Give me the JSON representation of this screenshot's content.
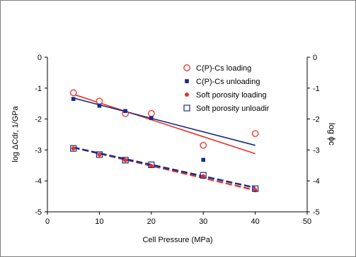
{
  "chart_data": {
    "type": "scatter",
    "xlabel": "Cell Pressure (MPa)",
    "ylabel_left": "log ΔCdr, 1/GPa",
    "ylabel_right": "log ϕc",
    "xlim": [
      0,
      50
    ],
    "ylim": [
      -5,
      0
    ],
    "x_ticks": [
      0,
      10,
      20,
      30,
      40,
      50
    ],
    "y_ticks": [
      0,
      -1,
      -2,
      -3,
      -4,
      -5
    ],
    "legend_position": "top-right",
    "grid": false,
    "series": [
      {
        "name": "C(P)-Cs loading",
        "marker": "open-circle",
        "color": "#e8312a",
        "x": [
          5,
          10,
          15,
          20,
          30,
          40
        ],
        "y": [
          -1.15,
          -1.42,
          -1.82,
          -1.82,
          -2.85,
          -2.47
        ],
        "trend": {
          "x": [
            5,
            40
          ],
          "y": [
            -1.2,
            -3.12
          ],
          "style": "solid"
        }
      },
      {
        "name": "C(P)-Cs unloading",
        "marker": "filled-square",
        "color": "#1b2a80",
        "x": [
          5,
          10,
          15,
          20,
          30
        ],
        "y": [
          -1.35,
          -1.57,
          -1.74,
          -1.97,
          -3.32
        ],
        "trend": {
          "x": [
            5,
            40
          ],
          "y": [
            -1.32,
            -2.85
          ],
          "style": "solid"
        }
      },
      {
        "name": "Soft porosity loading",
        "marker": "filled-circle",
        "color": "#e8312a",
        "x": [
          5,
          10,
          15,
          20,
          30,
          40
        ],
        "y": [
          -2.95,
          -3.15,
          -3.33,
          -3.52,
          -3.85,
          -4.3
        ],
        "trend": {
          "x": [
            5,
            40
          ],
          "y": [
            -2.92,
            -4.3
          ],
          "style": "dashed"
        }
      },
      {
        "name": "Soft porosity unloadir",
        "marker": "open-square",
        "color": "#1b2a80",
        "x": [
          5,
          10,
          15,
          20,
          30,
          40
        ],
        "y": [
          -2.95,
          -3.15,
          -3.33,
          -3.48,
          -3.82,
          -4.25
        ],
        "trend": {
          "x": [
            5,
            40
          ],
          "y": [
            -2.92,
            -4.22
          ],
          "style": "dashed"
        }
      }
    ]
  }
}
